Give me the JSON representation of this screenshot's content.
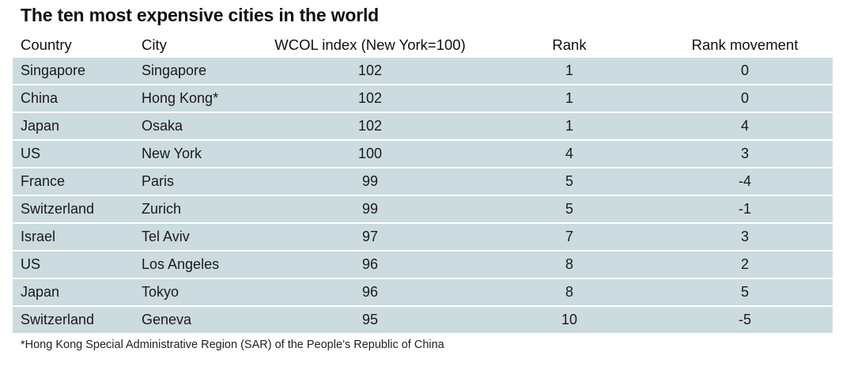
{
  "chart_data": {
    "type": "table",
    "title": "The ten most expensive cities in the world",
    "columns": [
      "Country",
      "City",
      "WCOL index (New York=100)",
      "Rank",
      "Rank movement"
    ],
    "rows": [
      [
        "Singapore",
        "Singapore",
        "102",
        "1",
        "0"
      ],
      [
        "China",
        "Hong Kong*",
        "102",
        "1",
        "0"
      ],
      [
        "Japan",
        "Osaka",
        "102",
        "1",
        "4"
      ],
      [
        "US",
        "New York",
        "100",
        "4",
        "3"
      ],
      [
        "France",
        "Paris",
        "99",
        "5",
        "-4"
      ],
      [
        "Switzerland",
        "Zurich",
        "99",
        "5",
        "-1"
      ],
      [
        "Israel",
        "Tel Aviv",
        "97",
        "7",
        "3"
      ],
      [
        "US",
        "Los Angeles",
        "96",
        "8",
        "2"
      ],
      [
        "Japan",
        "Tokyo",
        "96",
        "8",
        "5"
      ],
      [
        "Switzerland",
        "Geneva",
        "95",
        "10",
        "-5"
      ]
    ],
    "footnote": "*Hong Kong Special Administrative Region (SAR) of the People’s Republic of China"
  },
  "colors": {
    "row_background": "#cbdbe0",
    "row_separator": "#ffffff",
    "text": "#1a1a1a"
  }
}
